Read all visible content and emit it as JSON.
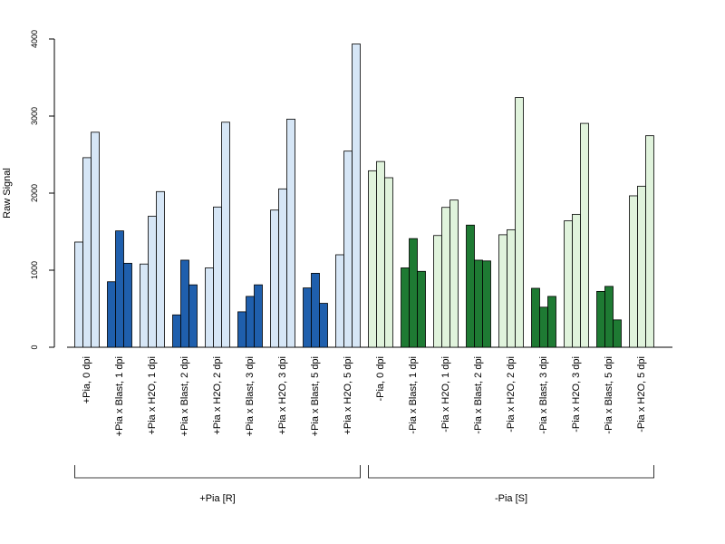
{
  "chart_data": {
    "type": "bar",
    "ylabel": "Raw Signal",
    "ylim": [
      0,
      4000
    ],
    "yticks": [
      0,
      1000,
      2000,
      3000,
      4000
    ],
    "groups": [
      {
        "label": "+Pia, 0 dpi",
        "values": [
          1365,
          2460,
          2790
        ],
        "color": "#d6e6f6"
      },
      {
        "label": "+Pia x Blast, 1 dpi",
        "values": [
          850,
          1510,
          1090
        ],
        "color": "#1f5fad"
      },
      {
        "label": "+Pia x H2O, 1 dpi",
        "values": [
          1080,
          1700,
          2020
        ],
        "color": "#d6e6f6"
      },
      {
        "label": "+Pia x Blast, 2 dpi",
        "values": [
          420,
          1130,
          810
        ],
        "color": "#1f5fad"
      },
      {
        "label": "+Pia x H2O, 2 dpi",
        "values": [
          1030,
          1820,
          2920
        ],
        "color": "#d6e6f6"
      },
      {
        "label": "+Pia x Blast, 3 dpi",
        "values": [
          460,
          660,
          810
        ],
        "color": "#1f5fad"
      },
      {
        "label": "+Pia x H2O, 3 dpi",
        "values": [
          1780,
          2055,
          2960
        ],
        "color": "#d6e6f6"
      },
      {
        "label": "+Pia x Blast, 5 dpi",
        "values": [
          770,
          960,
          570
        ],
        "color": "#1f5fad"
      },
      {
        "label": "+Pia x H2O, 5 dpi",
        "values": [
          1200,
          2545,
          3935
        ],
        "color": "#d6e6f6"
      },
      {
        "label": "-Pia, 0 dpi",
        "values": [
          2290,
          2410,
          2200
        ],
        "color": "#e0f3dc"
      },
      {
        "label": "-Pia x Blast, 1 dpi",
        "values": [
          1030,
          1410,
          985
        ],
        "color": "#1e7a33"
      },
      {
        "label": "-Pia x H2O, 1 dpi",
        "values": [
          1450,
          1815,
          1910
        ],
        "color": "#e0f3dc"
      },
      {
        "label": "-Pia x Blast, 2 dpi",
        "values": [
          1585,
          1130,
          1120
        ],
        "color": "#1e7a33"
      },
      {
        "label": "-Pia x H2O, 2 dpi",
        "values": [
          1460,
          1525,
          3240
        ],
        "color": "#e0f3dc"
      },
      {
        "label": "-Pia x Blast, 3 dpi",
        "values": [
          765,
          520,
          660
        ],
        "color": "#1e7a33"
      },
      {
        "label": "-Pia x H2O, 3 dpi",
        "values": [
          1640,
          1725,
          2905
        ],
        "color": "#e0f3dc"
      },
      {
        "label": "-Pia x Blast, 5 dpi",
        "values": [
          725,
          790,
          355
        ],
        "color": "#1e7a33"
      },
      {
        "label": "-Pia x H2O, 5 dpi",
        "values": [
          1965,
          2090,
          2745
        ],
        "color": "#e0f3dc"
      }
    ],
    "super_groups": [
      {
        "label": "+Pia [R]",
        "first": 0,
        "last": 8
      },
      {
        "label": "-Pia [S]",
        "first": 9,
        "last": 17
      }
    ]
  }
}
